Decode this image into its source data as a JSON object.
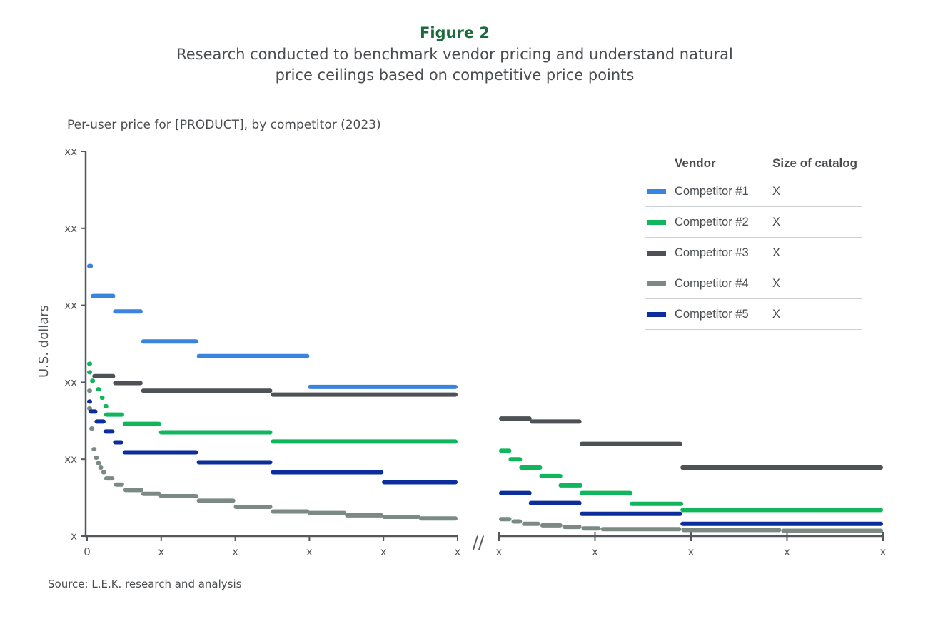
{
  "figure_label": "Figure 2",
  "title_line1": "Research conducted to benchmark vendor pricing and understand natural",
  "title_line2": "price ceilings based on competitive price points",
  "subtitle": "Per-user price for [PRODUCT], by competitor (2023)",
  "source": "Source: L.E.K. research and analysis",
  "legend": {
    "header_vendor": "Vendor",
    "header_size": "Size of catalog",
    "rows": [
      {
        "name": "Competitor #1",
        "size": "X",
        "color": "#3a84e0"
      },
      {
        "name": "Competitor #2",
        "size": "X",
        "color": "#0fb65b"
      },
      {
        "name": "Competitor #3",
        "size": "X",
        "color": "#4e5257"
      },
      {
        "name": "Competitor #4",
        "size": "X",
        "color": "#7b8b83"
      },
      {
        "name": "Competitor #5",
        "size": "X",
        "color": "#0b2e9c"
      }
    ]
  },
  "chart_data": {
    "type": "line",
    "style": "step segments, broken x-axis",
    "title": "Per-user price for [PRODUCT], by competitor (2023)",
    "ylabel": "U.S. dollars",
    "xlabel": "",
    "ylim": [
      0,
      5
    ],
    "y_tick_labels": [
      "x",
      "xx",
      "xx",
      "xx",
      "xx",
      "xx"
    ],
    "x_left_tick_labels": [
      "0",
      "x",
      "x",
      "x",
      "x",
      "x"
    ],
    "x_right_tick_labels": [
      "x",
      "x",
      "x",
      "x",
      "x"
    ],
    "x_axis_break": "//",
    "grid": false,
    "legend_placement": "top-right",
    "series": [
      {
        "name": "Competitor #1",
        "color": "#3a84e0",
        "left": [
          [
            0,
            0.08,
            3.51
          ],
          [
            0.05,
            0.38,
            3.12
          ],
          [
            0.35,
            0.75,
            2.92
          ],
          [
            0.73,
            1.5,
            2.53
          ],
          [
            1.48,
            3.0,
            2.34
          ],
          [
            2.98,
            5.0,
            1.94
          ]
        ],
        "right": []
      },
      {
        "name": "Competitor #2",
        "color": "#0fb65b",
        "left": [
          [
            0,
            0.03,
            2.24
          ],
          [
            0,
            0.05,
            2.13
          ],
          [
            0.04,
            0.1,
            2.02
          ],
          [
            0.12,
            0.18,
            1.91
          ],
          [
            0.17,
            0.23,
            1.8
          ],
          [
            0.22,
            0.28,
            1.69
          ],
          [
            0.23,
            0.5,
            1.58
          ],
          [
            0.48,
            1.0,
            1.46
          ],
          [
            0.97,
            2.5,
            1.35
          ],
          [
            2.48,
            5.0,
            1.23
          ]
        ],
        "right": [
          [
            0,
            0.13,
            1.11
          ],
          [
            0.1,
            0.24,
            1.0
          ],
          [
            0.21,
            0.45,
            0.89
          ],
          [
            0.42,
            0.66,
            0.78
          ],
          [
            0.62,
            0.87,
            0.66
          ],
          [
            0.84,
            1.39,
            0.56
          ],
          [
            1.36,
            1.92,
            0.42
          ],
          [
            1.89,
            4.0,
            0.34
          ]
        ]
      },
      {
        "name": "Competitor #3",
        "color": "#4e5257",
        "left": [
          [
            0.07,
            0.38,
            2.08
          ],
          [
            0.35,
            0.75,
            1.99
          ],
          [
            0.73,
            2.5,
            1.89
          ],
          [
            2.48,
            5.0,
            1.84
          ]
        ],
        "right": [
          [
            0,
            0.34,
            1.53
          ],
          [
            0.32,
            0.86,
            1.49
          ],
          [
            0.84,
            1.91,
            1.2
          ],
          [
            1.89,
            4.0,
            0.89
          ]
        ]
      },
      {
        "name": "Competitor #4",
        "color": "#7b8b83",
        "left": [
          [
            0,
            0.02,
            1.89
          ],
          [
            0,
            0.02,
            1.66
          ],
          [
            0.03,
            0.08,
            1.4
          ],
          [
            0.06,
            0.11,
            1.13
          ],
          [
            0.09,
            0.14,
            1.02
          ],
          [
            0.12,
            0.17,
            0.95
          ],
          [
            0.15,
            0.2,
            0.89
          ],
          [
            0.19,
            0.25,
            0.83
          ],
          [
            0.23,
            0.37,
            0.75
          ],
          [
            0.36,
            0.5,
            0.67
          ],
          [
            0.49,
            0.76,
            0.6
          ],
          [
            0.73,
            1.0,
            0.55
          ],
          [
            0.97,
            1.5,
            0.52
          ],
          [
            1.48,
            2.0,
            0.46
          ],
          [
            1.98,
            2.5,
            0.38
          ],
          [
            2.48,
            3.0,
            0.32
          ],
          [
            2.98,
            3.5,
            0.3
          ],
          [
            3.48,
            4.0,
            0.27
          ],
          [
            3.98,
            4.5,
            0.25
          ],
          [
            4.48,
            5.0,
            0.23
          ]
        ],
        "right": [
          [
            0,
            0.13,
            0.22
          ],
          [
            0.13,
            0.24,
            0.19
          ],
          [
            0.24,
            0.43,
            0.16
          ],
          [
            0.43,
            0.66,
            0.14
          ],
          [
            0.66,
            0.86,
            0.12
          ],
          [
            0.86,
            1.06,
            0.1
          ],
          [
            1.06,
            1.9,
            0.09
          ],
          [
            1.9,
            2.94,
            0.08
          ],
          [
            2.94,
            4.0,
            0.07
          ]
        ]
      },
      {
        "name": "Competitor #5",
        "color": "#0b2e9c",
        "left": [
          [
            0,
            0.06,
            1.75
          ],
          [
            0.02,
            0.14,
            1.62
          ],
          [
            0.1,
            0.25,
            1.49
          ],
          [
            0.22,
            0.37,
            1.36
          ],
          [
            0.35,
            0.49,
            1.22
          ],
          [
            0.48,
            1.5,
            1.09
          ],
          [
            1.48,
            2.5,
            0.96
          ],
          [
            2.48,
            4.0,
            0.83
          ],
          [
            3.98,
            5.0,
            0.7
          ]
        ],
        "right": [
          [
            0,
            0.34,
            0.56
          ],
          [
            0.31,
            0.86,
            0.43
          ],
          [
            0.84,
            1.91,
            0.29
          ],
          [
            1.89,
            4.0,
            0.16
          ]
        ]
      }
    ]
  }
}
